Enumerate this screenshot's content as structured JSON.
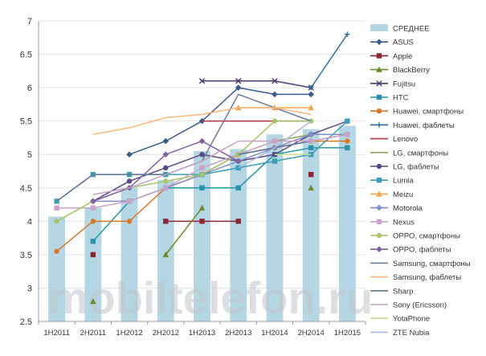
{
  "chart_data": {
    "type": "line",
    "categories": [
      "1H2011",
      "2H2011",
      "1H2012",
      "2H2012",
      "1H2013",
      "2H2013",
      "1H2014",
      "2H2014",
      "1H2015"
    ],
    "ylim": [
      2.5,
      7
    ],
    "yticks": [
      "2.5",
      "3",
      "3.5",
      "4",
      "4.5",
      "5",
      "5.5",
      "6",
      "6.5",
      "7"
    ],
    "grid": "horizontal",
    "legend_position": "right",
    "bars": {
      "name": "СРЕДНЕЕ",
      "color": "#b5d6e3",
      "values": [
        4.07,
        4.2,
        4.5,
        4.62,
        5.05,
        5.08,
        5.3,
        5.38,
        5.43
      ]
    },
    "series": [
      {
        "name": "ASUS",
        "color": "#3c5a8a",
        "marker": "diamond",
        "values": [
          null,
          null,
          5.0,
          5.2,
          5.5,
          6.0,
          5.9,
          5.9,
          null
        ]
      },
      {
        "name": "Apple",
        "color": "#8b2434",
        "marker": "square",
        "values": [
          null,
          3.5,
          null,
          4.0,
          4.0,
          4.0,
          null,
          4.7,
          null
        ]
      },
      {
        "name": "BlackBerry",
        "color": "#6d8a2b",
        "marker": "triangle",
        "values": [
          null,
          2.8,
          null,
          3.5,
          4.2,
          null,
          null,
          4.5,
          null
        ]
      },
      {
        "name": "Fujitsu",
        "color": "#4b3a6b",
        "marker": "x",
        "values": [
          null,
          null,
          null,
          null,
          6.1,
          6.1,
          6.1,
          6.0,
          null
        ]
      },
      {
        "name": "HTC",
        "color": "#2a93a8",
        "marker": "square",
        "values": [
          null,
          3.7,
          4.3,
          4.5,
          4.5,
          4.5,
          5.0,
          5.1,
          5.1
        ]
      },
      {
        "name": "Huawei, смартфоны",
        "color": "#d9782b",
        "marker": "circle",
        "values": [
          3.55,
          4.0,
          4.0,
          4.5,
          4.7,
          5.0,
          5.1,
          5.2,
          5.2
        ]
      },
      {
        "name": "Huawei, фаблеты",
        "color": "#2f6b96",
        "marker": "plus",
        "values": [
          null,
          null,
          null,
          null,
          null,
          null,
          null,
          6.0,
          6.8
        ]
      },
      {
        "name": "Lenovo",
        "color": "#b1343f",
        "marker": "none",
        "values": [
          null,
          null,
          null,
          null,
          5.5,
          5.5,
          5.5,
          5.5,
          null
        ]
      },
      {
        "name": "LG, смартфоны",
        "color": "#93a85a",
        "marker": "none",
        "values": [
          null,
          null,
          null,
          null,
          null,
          5.0,
          5.2,
          5.3,
          null
        ]
      },
      {
        "name": "LG, фаблеты",
        "color": "#5a4a82",
        "marker": "circle",
        "values": [
          null,
          4.3,
          4.6,
          4.8,
          5.0,
          4.9,
          5.0,
          5.3,
          5.5
        ]
      },
      {
        "name": "Lumia",
        "color": "#3a9eb3",
        "marker": "square",
        "values": [
          4.3,
          4.7,
          4.7,
          4.7,
          4.7,
          4.8,
          4.9,
          5.0,
          5.5
        ]
      },
      {
        "name": "Meizu",
        "color": "#f0a850",
        "marker": "triangle",
        "values": [
          null,
          null,
          null,
          null,
          null,
          5.7,
          5.7,
          5.7,
          null
        ]
      },
      {
        "name": "Motorola",
        "color": "#7d8fc4",
        "marker": "diamond",
        "values": [
          null,
          4.3,
          4.3,
          4.5,
          4.7,
          4.9,
          5.1,
          5.3,
          5.3
        ]
      },
      {
        "name": "Nexus",
        "color": "#c9a4c9",
        "marker": "square",
        "values": [
          4.2,
          4.2,
          4.3,
          4.5,
          4.8,
          5.0,
          5.2,
          5.2,
          5.3
        ]
      },
      {
        "name": "OPPO, смартфоны",
        "color": "#a7c46b",
        "marker": "circle",
        "values": [
          4.0,
          4.3,
          4.5,
          4.6,
          4.7,
          5.0,
          5.5,
          5.5,
          null
        ]
      },
      {
        "name": "OPPO, фаблеты",
        "color": "#8064a2",
        "marker": "diamond",
        "values": [
          null,
          4.3,
          4.5,
          5.0,
          5.2,
          4.9,
          null,
          null,
          null
        ]
      },
      {
        "name": "Samsung, смартфоны",
        "color": "#6b7a99",
        "marker": "none",
        "values": [
          4.3,
          4.7,
          4.7,
          4.7,
          4.9,
          5.9,
          5.7,
          5.5,
          null
        ]
      },
      {
        "name": "Samsung, фаблеты",
        "color": "#f5b97a",
        "marker": "none",
        "values": [
          null,
          5.3,
          5.4,
          5.55,
          5.6,
          5.7,
          5.7,
          5.6,
          null
        ]
      },
      {
        "name": "Sharp",
        "color": "#56759c",
        "marker": "none",
        "values": [
          null,
          null,
          null,
          null,
          null,
          5.0,
          5.1,
          5.2,
          null
        ]
      },
      {
        "name": "Sony (Ericsson)",
        "color": "#c7a0c7",
        "marker": "none",
        "values": [
          null,
          4.4,
          4.5,
          4.7,
          4.9,
          5.2,
          5.2,
          5.2,
          5.3
        ]
      },
      {
        "name": "YotaPhone",
        "color": "#c6dc8e",
        "marker": "none",
        "values": [
          null,
          null,
          null,
          null,
          null,
          null,
          5.0,
          5.0,
          null
        ]
      },
      {
        "name": "ZTE Nubia",
        "color": "#a8b8de",
        "marker": "none",
        "values": [
          null,
          null,
          null,
          null,
          null,
          4.8,
          5.1,
          5.5,
          null
        ]
      }
    ]
  },
  "watermark": "mobiltelefon.ru"
}
